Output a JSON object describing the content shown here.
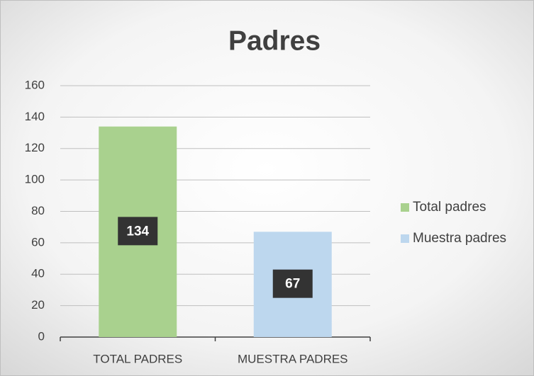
{
  "chart_data": {
    "type": "bar",
    "title": "Padres",
    "categories": [
      "TOTAL PADRES",
      "MUESTRA PADRES"
    ],
    "series": [
      {
        "name": "Total padres",
        "color": "#a9d18e",
        "values": [
          134,
          null
        ]
      },
      {
        "name": "Muestra padres",
        "color": "#bdd7ee",
        "values": [
          null,
          67
        ]
      }
    ],
    "ylim": [
      0,
      160
    ],
    "yticks": [
      0,
      20,
      40,
      60,
      80,
      100,
      120,
      140,
      160
    ],
    "grid": true,
    "legend": "right"
  }
}
